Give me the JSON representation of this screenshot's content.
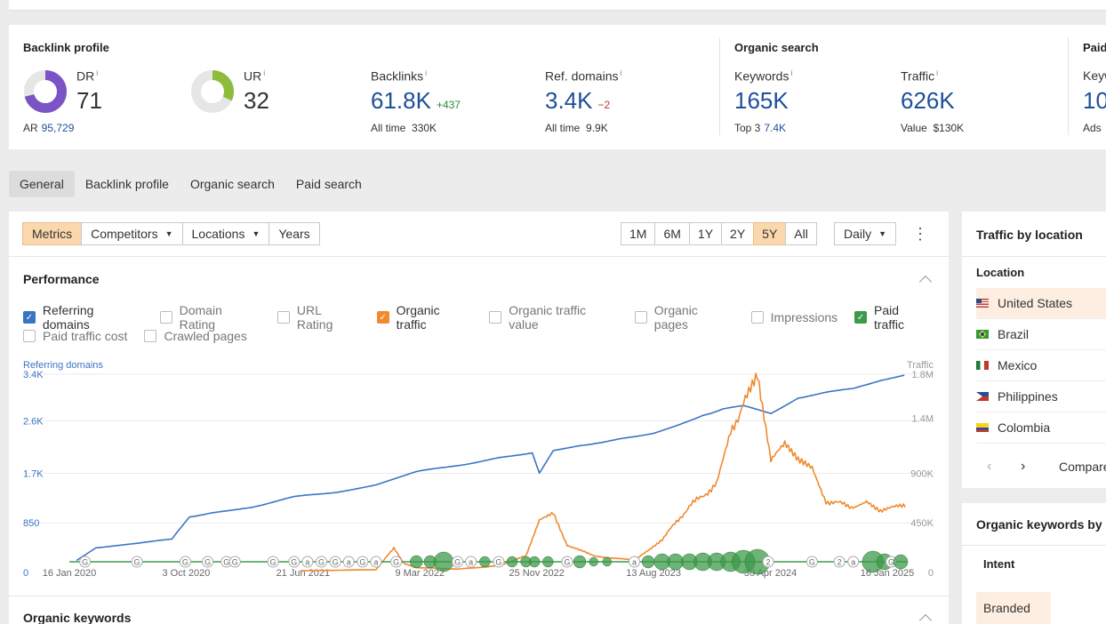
{
  "backlink_profile": {
    "title": "Backlink profile",
    "dr": {
      "label": "DR",
      "info": "i",
      "value": "71",
      "fill_percent": 71,
      "color": "#7a54c4"
    },
    "ar": {
      "label": "AR",
      "value": "95,729"
    },
    "ur": {
      "label": "UR",
      "info": "i",
      "value": "32",
      "fill_percent": 32,
      "color": "#8dbb3a"
    },
    "backlinks": {
      "label": "Backlinks",
      "info": "i",
      "value": "61.8K",
      "delta": "+437",
      "sub_label": "All time",
      "sub_value": "330K"
    },
    "ref_domains": {
      "label": "Ref. domains",
      "info": "i",
      "value": "3.4K",
      "delta": "−2",
      "sub_label": "All time",
      "sub_value": "9.9K"
    }
  },
  "organic_search": {
    "title": "Organic search",
    "keywords": {
      "label": "Keywords",
      "info": "i",
      "value": "165K",
      "sub_label": "Top 3",
      "sub_value": "7.4K"
    },
    "traffic": {
      "label": "Traffic",
      "info": "i",
      "value": "626K",
      "sub_label": "Value",
      "sub_value": "$130K"
    }
  },
  "paid_search": {
    "title": "Paid",
    "keywords_label": "Keyw",
    "value": "10",
    "sub_label": "Ads"
  },
  "tabs": [
    {
      "label": "General",
      "active": true
    },
    {
      "label": "Backlink profile"
    },
    {
      "label": "Organic search"
    },
    {
      "label": "Paid search"
    }
  ],
  "toolbar": {
    "metrics": "Metrics",
    "competitors": "Competitors",
    "locations": "Locations",
    "years": "Years",
    "ranges": [
      "1M",
      "6M",
      "1Y",
      "2Y",
      "5Y",
      "All"
    ],
    "active_range": "5Y",
    "interval": "Daily"
  },
  "performance": {
    "title": "Performance",
    "checkboxes": [
      {
        "label": "Referring domains",
        "checked": true,
        "color": "#3a74c4"
      },
      {
        "label": "Domain Rating",
        "checked": false
      },
      {
        "label": "URL Rating",
        "checked": false
      },
      {
        "label": "Organic traffic",
        "checked": true,
        "color": "#ef8a2e"
      },
      {
        "label": "Organic traffic value",
        "checked": false
      },
      {
        "label": "Organic pages",
        "checked": false
      },
      {
        "label": "Impressions",
        "checked": false
      },
      {
        "label": "Paid traffic",
        "checked": true,
        "color": "#3d9a4a"
      },
      {
        "label": "Paid traffic cost",
        "checked": false
      },
      {
        "label": "Crawled pages",
        "checked": false
      }
    ]
  },
  "chart_data": {
    "type": "line",
    "left_axis_label": "Referring domains",
    "right_axis_label": "Traffic",
    "left_ticks": [
      "3.4K",
      "2.6K",
      "1.7K",
      "850",
      "0"
    ],
    "left_tick_values": [
      3400,
      2600,
      1700,
      850,
      0
    ],
    "right_ticks": [
      "1.8M",
      "1.4M",
      "900K",
      "450K",
      "0"
    ],
    "right_tick_values": [
      1800000,
      1400000,
      900000,
      450000,
      0
    ],
    "x_ticks": [
      "16 Jan 2020",
      "3 Oct 2020",
      "21 Jun 2021",
      "9 Mar 2022",
      "25 Nov 2022",
      "13 Aug 2023",
      "30 Apr 2024",
      "16 Jan 2025"
    ],
    "series": [
      {
        "name": "Referring domains",
        "color": "#3a74c4",
        "axis": "left",
        "x": [
          "2020-02-01",
          "2020-03-15",
          "2020-06-01",
          "2020-09-01",
          "2020-10-10",
          "2020-12-01",
          "2021-03-01",
          "2021-06-01",
          "2021-09-01",
          "2021-12-01",
          "2022-03-01",
          "2022-06-01",
          "2022-09-01",
          "2022-11-15",
          "2022-12-01",
          "2023-01-01",
          "2023-03-01",
          "2023-06-01",
          "2023-08-15",
          "2023-10-01",
          "2023-12-01",
          "2024-01-15",
          "2024-03-01",
          "2024-05-01",
          "2024-07-01",
          "2024-09-01",
          "2024-11-01",
          "2025-01-01",
          "2025-03-01"
        ],
        "y": [
          200,
          430,
          500,
          560,
          960,
          1030,
          1130,
          1290,
          1380,
          1500,
          1720,
          1840,
          1960,
          2060,
          1700,
          2100,
          2180,
          2290,
          2400,
          2520,
          2700,
          2800,
          2850,
          2720,
          3000,
          3080,
          3150,
          3300,
          3400
        ]
      },
      {
        "name": "Organic traffic",
        "color": "#ef8a2e",
        "axis": "right",
        "x": [
          "2021-06-15",
          "2021-09-01",
          "2021-12-01",
          "2022-01-10",
          "2022-02-01",
          "2022-03-01",
          "2022-06-01",
          "2022-09-01",
          "2022-11-01",
          "2022-12-01",
          "2023-01-01",
          "2023-02-01",
          "2023-04-01",
          "2023-07-01",
          "2023-09-01",
          "2023-11-01",
          "2024-01-01",
          "2024-02-01",
          "2024-03-01",
          "2024-04-01",
          "2024-05-01",
          "2024-06-01",
          "2024-07-01",
          "2024-08-01",
          "2024-09-01",
          "2024-11-01",
          "2024-12-01",
          "2025-01-01",
          "2025-03-01"
        ],
        "y": [
          15000,
          20000,
          25000,
          220000,
          80000,
          45000,
          30000,
          60000,
          150000,
          470000,
          550000,
          250000,
          150000,
          110000,
          300000,
          600000,
          800000,
          1250000,
          1550000,
          1750000,
          1000000,
          1150000,
          1000000,
          950000,
          650000,
          600000,
          660000,
          560000,
          610000
        ]
      },
      {
        "name": "Paid traffic",
        "color": "#3d9a4a",
        "axis": "right",
        "x": [
          "2020-01-16",
          "2025-03-01"
        ],
        "y": [
          0,
          0
        ]
      }
    ],
    "markers": [
      {
        "date": "2020-02-20",
        "label": "G",
        "paid_size": 0
      },
      {
        "date": "2020-06-15",
        "label": "G",
        "paid_size": 0
      },
      {
        "date": "2020-10-01",
        "label": "G",
        "paid_size": 0
      },
      {
        "date": "2020-11-20",
        "label": "G",
        "paid_size": 0
      },
      {
        "date": "2021-01-01",
        "label": "G",
        "paid_size": 0
      },
      {
        "date": "2021-01-20",
        "label": "G",
        "paid_size": 0
      },
      {
        "date": "2021-04-15",
        "label": "G",
        "paid_size": 0
      },
      {
        "date": "2021-06-01",
        "label": "G",
        "paid_size": 0
      },
      {
        "date": "2021-07-01",
        "label": "a",
        "paid_size": 0
      },
      {
        "date": "2021-08-01",
        "label": "G",
        "paid_size": 0
      },
      {
        "date": "2021-09-01",
        "label": "G",
        "paid_size": 0
      },
      {
        "date": "2021-10-01",
        "label": "a",
        "paid_size": 0
      },
      {
        "date": "2021-11-01",
        "label": "G",
        "paid_size": 0
      },
      {
        "date": "2021-12-01",
        "label": "a",
        "paid_size": 0
      },
      {
        "date": "2022-01-15",
        "label": "G",
        "paid_size": 0
      },
      {
        "date": "2022-03-01",
        "label": "",
        "paid_size": 7
      },
      {
        "date": "2022-04-01",
        "label": "",
        "paid_size": 7
      },
      {
        "date": "2022-05-01",
        "label": "",
        "paid_size": 11
      },
      {
        "date": "2022-06-01",
        "label": "G",
        "paid_size": 0
      },
      {
        "date": "2022-07-01",
        "label": "a",
        "paid_size": 0
      },
      {
        "date": "2022-08-01",
        "label": "",
        "paid_size": 6
      },
      {
        "date": "2022-09-01",
        "label": "G",
        "paid_size": 0
      },
      {
        "date": "2022-10-01",
        "label": "",
        "paid_size": 6
      },
      {
        "date": "2022-11-01",
        "label": "",
        "paid_size": 6
      },
      {
        "date": "2022-11-20",
        "label": "",
        "paid_size": 6
      },
      {
        "date": "2022-12-20",
        "label": "",
        "paid_size": 6
      },
      {
        "date": "2023-02-01",
        "label": "G",
        "paid_size": 0
      },
      {
        "date": "2023-03-01",
        "label": "",
        "paid_size": 7
      },
      {
        "date": "2023-04-01",
        "label": "",
        "paid_size": 5
      },
      {
        "date": "2023-05-01",
        "label": "",
        "paid_size": 5
      },
      {
        "date": "2023-07-01",
        "label": "a",
        "paid_size": 0
      },
      {
        "date": "2023-08-01",
        "label": "",
        "paid_size": 7
      },
      {
        "date": "2023-09-01",
        "label": "",
        "paid_size": 9
      },
      {
        "date": "2023-10-01",
        "label": "",
        "paid_size": 9
      },
      {
        "date": "2023-11-01",
        "label": "",
        "paid_size": 9
      },
      {
        "date": "2023-12-01",
        "label": "",
        "paid_size": 10
      },
      {
        "date": "2024-01-01",
        "label": "",
        "paid_size": 10
      },
      {
        "date": "2024-02-01",
        "label": "",
        "paid_size": 11
      },
      {
        "date": "2024-03-01",
        "label": "",
        "paid_size": 13
      },
      {
        "date": "2024-04-01",
        "label": "",
        "paid_size": 14
      },
      {
        "date": "2024-04-25",
        "label": "2",
        "paid_size": 0
      },
      {
        "date": "2024-08-01",
        "label": "G",
        "paid_size": 0
      },
      {
        "date": "2024-10-01",
        "label": "2",
        "paid_size": 0
      },
      {
        "date": "2024-11-01",
        "label": "a",
        "paid_size": 0
      },
      {
        "date": "2024-12-15",
        "label": "",
        "paid_size": 12
      },
      {
        "date": "2025-01-10",
        "label": "",
        "paid_size": 9
      },
      {
        "date": "2025-01-25",
        "label": "G",
        "paid_size": 0
      },
      {
        "date": "2025-02-15",
        "label": "",
        "paid_size": 8
      }
    ]
  },
  "organic_keywords": {
    "title": "Organic keywords"
  },
  "traffic_by_location": {
    "title": "Traffic by location",
    "column": "Location",
    "rows": [
      {
        "country": "United States",
        "flag": "us-flag-icon"
      },
      {
        "country": "Brazil",
        "flag": "brazil-flag-icon"
      },
      {
        "country": "Mexico",
        "flag": "mexico-flag-icon"
      },
      {
        "country": "Philippines",
        "flag": "philippines-flag-icon"
      },
      {
        "country": "Colombia",
        "flag": "colombia-flag-icon"
      }
    ],
    "compare_label": "Compare"
  },
  "organic_keywords_by_intent": {
    "title": "Organic keywords by i",
    "column": "Intent",
    "first_row": "Branded"
  }
}
